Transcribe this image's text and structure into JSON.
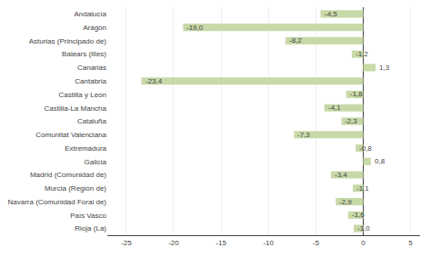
{
  "chart_data": {
    "type": "bar",
    "orientation": "horizontal",
    "categories": [
      "Andalucía",
      "Aragón",
      "Asturias (Principado de)",
      "Balears (Illes)",
      "Canarias",
      "Cantabria",
      "Castilla y León",
      "Castilla-La Mancha",
      "Cataluña",
      "Comunitat Valenciana",
      "Extremadura",
      "Galicia",
      "Madrid (Comunidad de)",
      "Murcia (Región de)",
      "Navarra (Comunidad Foral de)",
      "País Vasco",
      "Rioja (La)"
    ],
    "values": [
      -4.5,
      -19.0,
      -8.2,
      -1.2,
      1.3,
      -23.4,
      -1.8,
      -4.1,
      -2.3,
      -7.3,
      -0.8,
      0.8,
      -3.4,
      -1.1,
      -2.9,
      -1.6,
      -1.0
    ],
    "value_labels": [
      "-4,5",
      "-19,0",
      "-8,2",
      "-1,2",
      "1,3",
      "-23,4",
      "-1,8",
      "-4,1",
      "-2,3",
      "-7,3",
      "-0,8",
      "0,8",
      "-3,4",
      "-1,1",
      "-2,9",
      "-1,6",
      "-1,0"
    ],
    "color": "#c8d9a8",
    "xlim": [
      -27,
      6
    ],
    "xticks": [
      -25,
      -20,
      -15,
      -10,
      -5,
      0,
      5
    ],
    "grid": true,
    "data_labels": true
  }
}
